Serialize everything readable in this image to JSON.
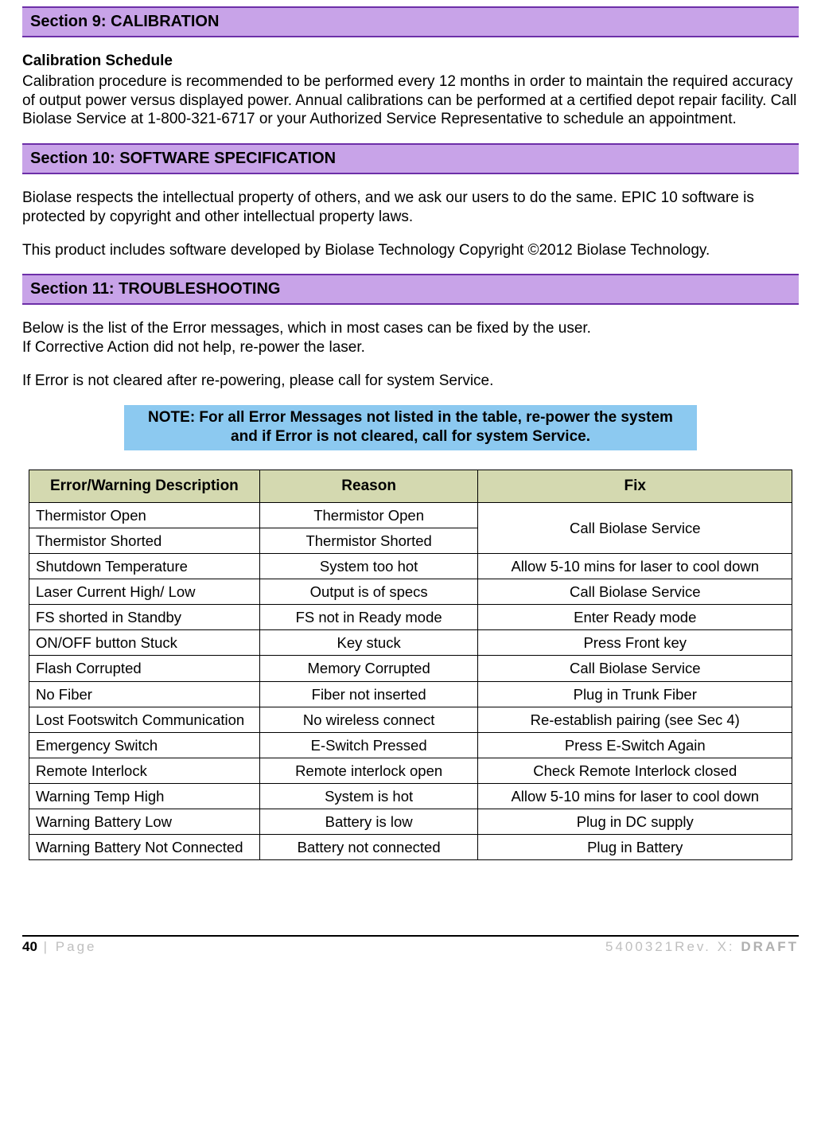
{
  "section9": {
    "title": "Section 9: CALIBRATION",
    "subhead": "Calibration Schedule",
    "para": "Calibration procedure is recommended to be performed every 12 months in order to maintain the required accuracy of output power versus displayed power.  Annual calibrations can be performed at a certified depot repair facility.  Call Biolase Service at 1-800-321-6717 or your Authorized Service Representative to schedule an appointment."
  },
  "section10": {
    "title": "Section 10: SOFTWARE SPECIFICATION",
    "para1": "Biolase respects the intellectual property of others, and we ask our users to do the same.  EPIC 10 software is protected by copyright and other intellectual property laws.",
    "para2": "This product includes software developed by Biolase Technology Copyright ©2012 Biolase Technology."
  },
  "section11": {
    "title": "Section 11:  TROUBLESHOOTING",
    "para1a": "Below is the list of the Error messages, which in most cases can be fixed by the user.",
    "para1b": "If Corrective Action did not help, re-power the laser.",
    "para2": "If Error is not cleared after re-powering, please call for system Service.",
    "note": "NOTE: For all Error Messages not listed in the table, re-power the system and if Error is not cleared, call for system Service."
  },
  "table": {
    "headers": [
      "Error/Warning Description",
      "Reason",
      "Fix"
    ],
    "rows": [
      {
        "err": "Thermistor Open",
        "reason": "Thermistor Open",
        "fix": "Call Biolase Service",
        "fixRowspan": 2
      },
      {
        "err": "Thermistor Shorted",
        "reason": "Thermistor Shorted",
        "fix": null
      },
      {
        "err": "Shutdown Temperature",
        "reason": "System too hot",
        "fix": "Allow 5-10 mins for laser to cool down"
      },
      {
        "err": "Laser Current High/ Low",
        "reason": "Output is of specs",
        "fix": "Call Biolase Service"
      },
      {
        "err": "FS shorted in Standby",
        "reason": "FS not in Ready mode",
        "fix": "Enter Ready mode"
      },
      {
        "err": "ON/OFF button Stuck",
        "reason": "Key stuck",
        "fix": "Press Front key"
      },
      {
        "err": "Flash Corrupted",
        "reason": "Memory Corrupted",
        "fix": "Call Biolase Service"
      },
      {
        "err": "No Fiber",
        "reason": "Fiber not inserted",
        "fix": "Plug in Trunk Fiber"
      },
      {
        "err": "Lost Footswitch Communication",
        "reason": "No wireless connect",
        "fix": "Re-establish pairing (see Sec 4)"
      },
      {
        "err": "Emergency Switch",
        "reason": "E-Switch Pressed",
        "fix": "Press E-Switch Again"
      },
      {
        "err": "Remote Interlock",
        "reason": "Remote interlock open",
        "fix": "Check Remote Interlock closed"
      },
      {
        "err": "Warning Temp High",
        "reason": "System is hot",
        "fix": "Allow 5-10 mins for laser to cool down"
      },
      {
        "err": "Warning Battery Low",
        "reason": "Battery is low",
        "fix": "Plug in DC supply"
      },
      {
        "err": "Warning Battery Not Connected",
        "reason": "Battery not connected",
        "fix": "Plug in Battery"
      }
    ]
  },
  "footer": {
    "page_num": "40",
    "page_sep": " | ",
    "page_word": "Page",
    "doc_ref": "5400321Rev. X: ",
    "draft": "DRAFT"
  },
  "colors": {
    "section_bg": "#c8a3e8",
    "section_border": "#6d2fa8",
    "note_bg": "#8cc9f0",
    "table_header_bg": "#d4d9b0",
    "footer_gray": "#bfbfbf"
  }
}
